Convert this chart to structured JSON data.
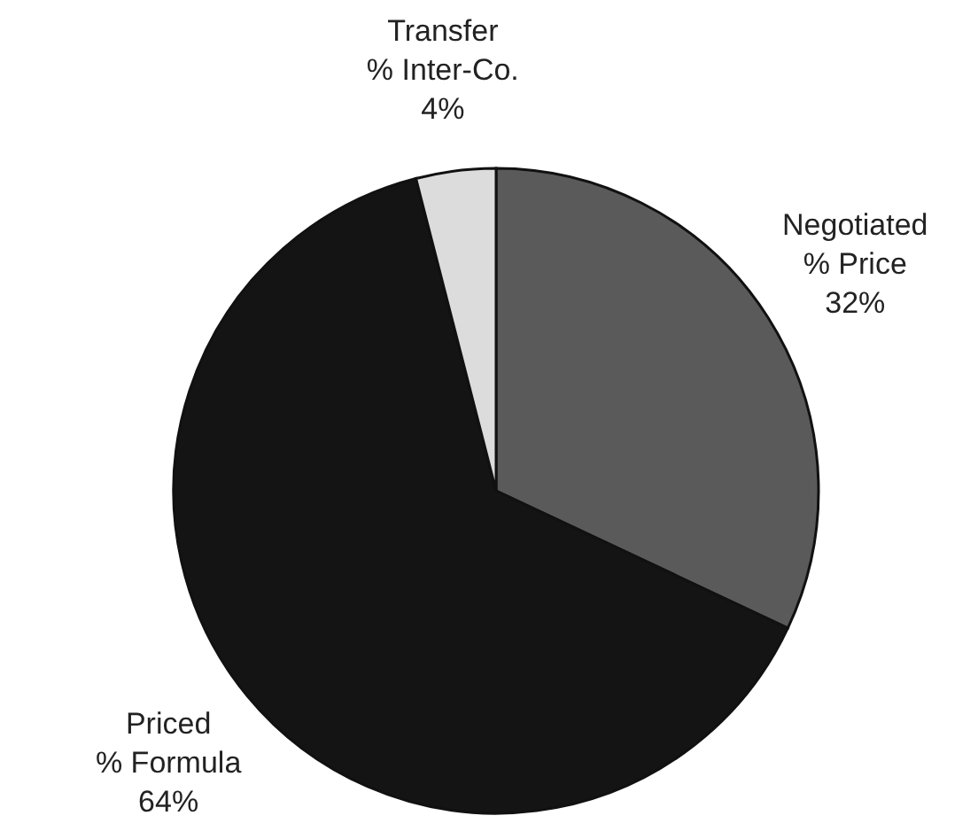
{
  "chart_data": {
    "type": "pie",
    "categories": [
      "Negotiated\n% Price",
      "Priced\n% Formula",
      "Transfer\n% Inter-Co."
    ],
    "values": [
      32,
      64,
      4
    ],
    "colors": [
      "#5a5a5a",
      "#141414",
      "#dcdcdc"
    ],
    "value_labels": [
      "32%",
      "64%",
      "4%"
    ],
    "legend": false
  }
}
